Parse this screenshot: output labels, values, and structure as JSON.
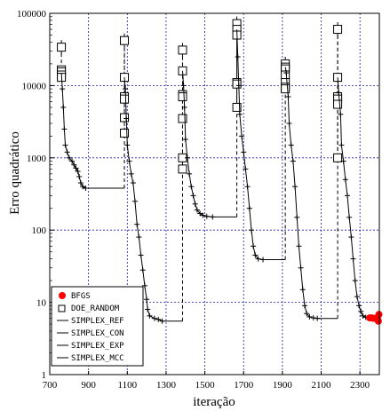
{
  "chart_data": {
    "type": "line",
    "xlabel": "iteração",
    "ylabel": "Erro quadrático",
    "xlim": [
      700,
      2400
    ],
    "ylim": [
      1,
      100000
    ],
    "yscale": "log",
    "x_ticks": [
      "700",
      "900",
      "1100",
      "1300",
      "1500",
      "1700",
      "1900",
      "2100",
      "2300"
    ],
    "y_ticks": [
      "1",
      "10",
      "100",
      "1000",
      "10000",
      "100000"
    ],
    "grid": true,
    "legend_position": "bottom-left",
    "legend": [
      "BFGS",
      "DOE_RANDOM",
      "SIMPLEX_REF",
      "SIMPLEX_CON",
      "SIMPLEX_EXP",
      "SIMPLEX_MCC"
    ],
    "colors": {
      "bfgs": "#ff0000",
      "line": "#000000",
      "grid": "#1a1aa0"
    },
    "blocks": [
      {
        "doe_x": 760,
        "doe_y": [
          34000,
          16500,
          15500,
          14000,
          13000
        ],
        "drop": [
          [
            760,
            15000
          ],
          [
            765,
            9000
          ],
          [
            770,
            5000
          ],
          [
            775,
            2500
          ],
          [
            780,
            1500
          ],
          [
            790,
            1200
          ],
          [
            800,
            1000
          ],
          [
            815,
            900
          ],
          [
            825,
            800
          ],
          [
            835,
            720
          ],
          [
            845,
            650
          ],
          [
            852,
            550
          ],
          [
            860,
            450
          ],
          [
            870,
            400
          ],
          [
            885,
            380
          ]
        ],
        "flat_end": 1085,
        "flat_y": 380
      },
      {
        "doe_x": 1085,
        "doe_y": [
          42000,
          13000,
          7000,
          6500,
          3600,
          2200
        ],
        "drop": [
          [
            1085,
            13000
          ],
          [
            1090,
            9000
          ],
          [
            1095,
            3500
          ],
          [
            1100,
            1500
          ],
          [
            1110,
            900
          ],
          [
            1120,
            600
          ],
          [
            1130,
            450
          ],
          [
            1140,
            250
          ],
          [
            1150,
            120
          ],
          [
            1160,
            80
          ],
          [
            1170,
            45
          ],
          [
            1180,
            28
          ],
          [
            1190,
            17
          ],
          [
            1200,
            11
          ],
          [
            1205,
            8
          ],
          [
            1215,
            6.5
          ],
          [
            1240,
            6
          ],
          [
            1260,
            5.8
          ],
          [
            1280,
            5.5
          ]
        ],
        "flat_end": 1385,
        "flat_y": 5.5
      },
      {
        "doe_x": 1385,
        "doe_y": [
          31000,
          16000,
          7500,
          7000,
          3500,
          1000,
          700
        ],
        "drop": [
          [
            1385,
            16000
          ],
          [
            1390,
            10000
          ],
          [
            1395,
            5000
          ],
          [
            1400,
            1800
          ],
          [
            1410,
            1000
          ],
          [
            1420,
            600
          ],
          [
            1430,
            400
          ],
          [
            1440,
            300
          ],
          [
            1450,
            230
          ],
          [
            1460,
            190
          ],
          [
            1475,
            170
          ],
          [
            1490,
            160
          ],
          [
            1510,
            155
          ],
          [
            1540,
            152
          ]
        ],
        "flat_end": 1665,
        "flat_y": 152
      },
      {
        "doe_x": 1665,
        "doe_y": [
          72000,
          60000,
          50000,
          11000,
          10500,
          5000
        ],
        "drop": [
          [
            1665,
            60000
          ],
          [
            1670,
            25000
          ],
          [
            1675,
            10000
          ],
          [
            1680,
            4000
          ],
          [
            1690,
            2000
          ],
          [
            1700,
            1200
          ],
          [
            1710,
            700
          ],
          [
            1720,
            400
          ],
          [
            1730,
            200
          ],
          [
            1740,
            100
          ],
          [
            1750,
            60
          ],
          [
            1760,
            45
          ],
          [
            1775,
            40
          ],
          [
            1800,
            39
          ]
        ],
        "flat_end": 1915,
        "flat_y": 39
      },
      {
        "doe_x": 1915,
        "doe_y": [
          20000,
          18000,
          17000,
          14000,
          11000,
          9500,
          9000
        ],
        "drop": [
          [
            1915,
            18000
          ],
          [
            1920,
            15000
          ],
          [
            1930,
            7000
          ],
          [
            1935,
            3000
          ],
          [
            1945,
            1500
          ],
          [
            1955,
            900
          ],
          [
            1965,
            400
          ],
          [
            1975,
            150
          ],
          [
            1985,
            60
          ],
          [
            1995,
            30
          ],
          [
            2005,
            15
          ],
          [
            2015,
            9
          ],
          [
            2025,
            7
          ],
          [
            2040,
            6.3
          ],
          [
            2060,
            6.1
          ],
          [
            2080,
            6
          ]
        ],
        "flat_end": 2185,
        "flat_y": 6
      },
      {
        "doe_x": 2185,
        "doe_y": [
          60000,
          13000,
          7000,
          6500,
          5500,
          1000
        ],
        "drop": [
          [
            2185,
            13000
          ],
          [
            2190,
            8000
          ],
          [
            2200,
            4000
          ],
          [
            2205,
            1500
          ],
          [
            2215,
            900
          ],
          [
            2225,
            500
          ],
          [
            2235,
            300
          ],
          [
            2245,
            150
          ],
          [
            2255,
            80
          ],
          [
            2265,
            40
          ],
          [
            2275,
            20
          ],
          [
            2285,
            12
          ],
          [
            2295,
            9
          ],
          [
            2305,
            7.5
          ],
          [
            2315,
            6.5
          ],
          [
            2330,
            6.2
          ]
        ],
        "flat_end": 2345,
        "flat_y": 6.1
      }
    ],
    "bfgs_points": [
      [
        2350,
        6.1
      ],
      [
        2360,
        6.1
      ],
      [
        2370,
        6.0
      ],
      [
        2380,
        6.0
      ],
      [
        2390,
        6.0
      ],
      [
        2395,
        5.5
      ],
      [
        2398,
        6.8
      ]
    ]
  }
}
